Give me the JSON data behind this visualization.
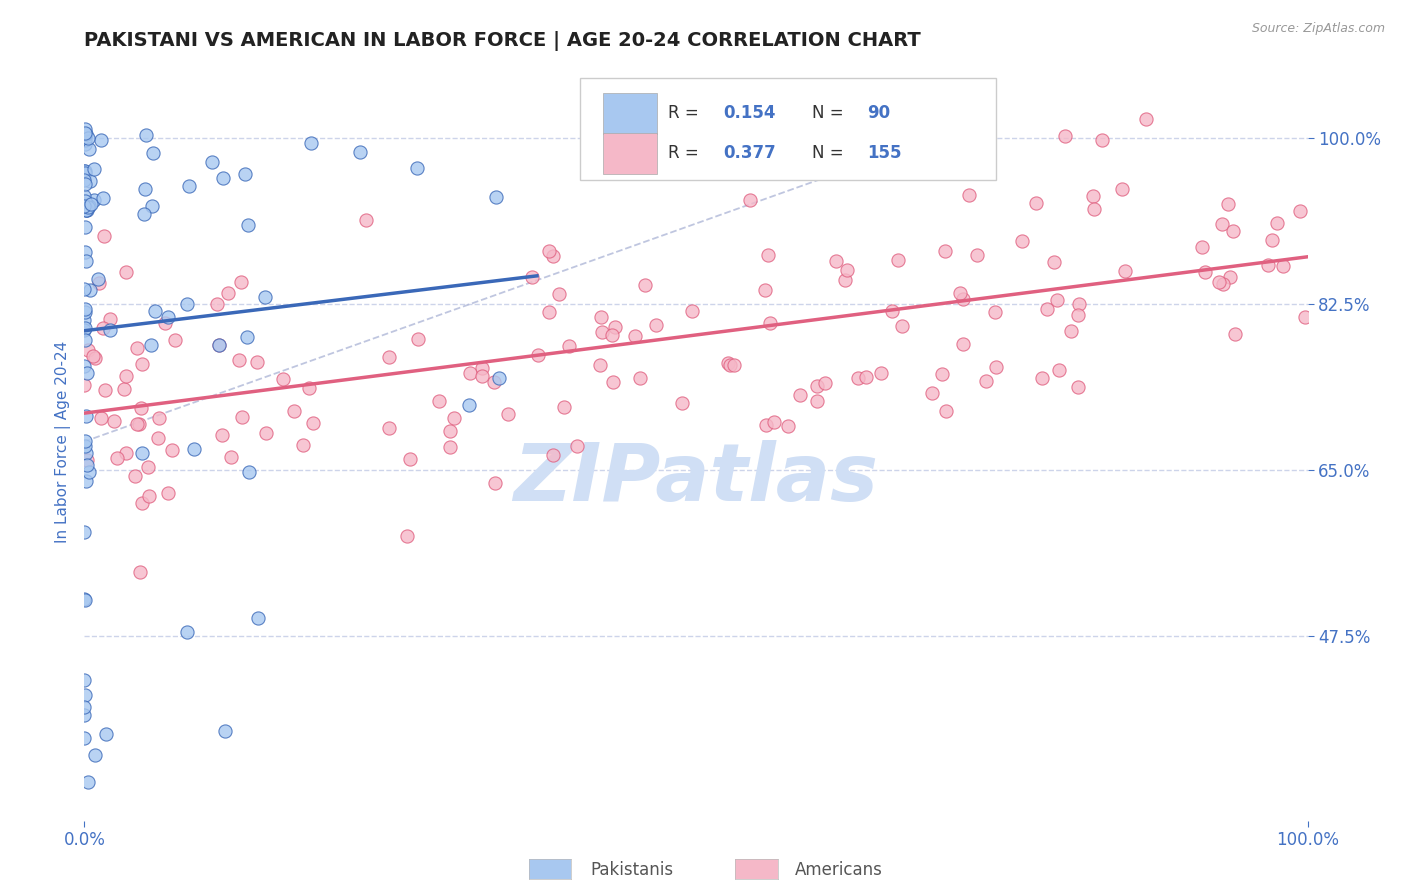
{
  "title": "PAKISTANI VS AMERICAN IN LABOR FORCE | AGE 20-24 CORRELATION CHART",
  "source": "Source: ZipAtlas.com",
  "ylabel": "In Labor Force | Age 20-24",
  "xlim": [
    0.0,
    1.0
  ],
  "ylim": [
    0.28,
    1.08
  ],
  "yticks": [
    0.475,
    0.65,
    0.825,
    1.0
  ],
  "ytick_labels": [
    "47.5%",
    "65.0%",
    "82.5%",
    "100.0%"
  ],
  "xtick_labels": [
    "0.0%",
    "100.0%"
  ],
  "xticks": [
    0.0,
    1.0
  ],
  "pakistani_color": "#a8c8f0",
  "american_color": "#f5b8c8",
  "pakistani_R": 0.154,
  "pakistani_N": 90,
  "american_R": 0.377,
  "american_N": 155,
  "title_fontsize": 14,
  "label_fontsize": 11,
  "tick_fontsize": 12,
  "watermark_text": "ZIPatlas",
  "watermark_color": "#d0dff5",
  "legend_pakistani_label": "Pakistanis",
  "legend_american_label": "Americans",
  "blue_line_color": "#3a68b8",
  "pink_line_color": "#e06080",
  "axis_label_color": "#4472c4",
  "tick_color": "#4472c4",
  "background_color": "#ffffff",
  "grid_color": "#c8d0e8",
  "ref_line_color": "#b0b8d8"
}
